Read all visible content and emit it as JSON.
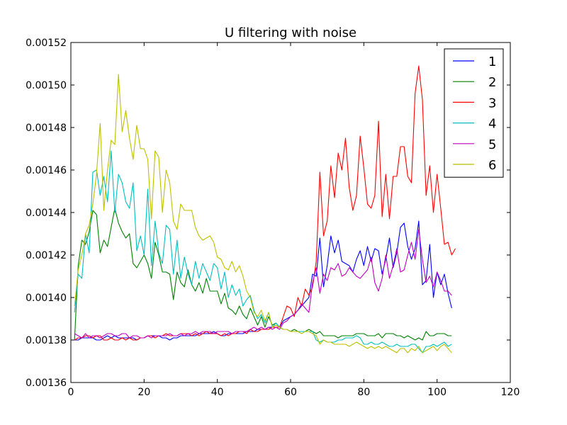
{
  "chart_data": {
    "type": "line",
    "title": "U filtering with noise",
    "xlabel": "",
    "ylabel": "",
    "xlim": [
      0,
      120
    ],
    "ylim": [
      0.00136,
      0.00152
    ],
    "xticks": [
      "0",
      "20",
      "40",
      "60",
      "80",
      "100",
      "120"
    ],
    "yticks": [
      "0.00136",
      "0.00138",
      "0.00140",
      "0.00142",
      "0.00144",
      "0.00146",
      "0.00148",
      "0.00150",
      "0.00152"
    ],
    "grid": false,
    "legend_position": "top-right",
    "x_start": 1,
    "x_step": 1,
    "series": [
      {
        "name": "1",
        "color": "#0000ff",
        "values": [
          0.00138,
          0.00138,
          0.001381,
          0.001381,
          0.001381,
          0.001381,
          0.00138,
          0.00138,
          0.001381,
          0.001382,
          0.001381,
          0.001382,
          0.001381,
          0.001381,
          0.001381,
          0.001381,
          0.001381,
          0.00138,
          0.001381,
          0.001381,
          0.001382,
          0.001382,
          0.001382,
          0.001382,
          0.001381,
          0.001381,
          0.00138,
          0.001381,
          0.001381,
          0.001382,
          0.001382,
          0.001382,
          0.001382,
          0.001382,
          0.001383,
          0.001383,
          0.001383,
          0.001383,
          0.001384,
          0.001383,
          0.001382,
          0.001382,
          0.001383,
          0.001383,
          0.001383,
          0.001383,
          0.001383,
          0.001384,
          0.001384,
          0.001384,
          0.001385,
          0.001385,
          0.001385,
          0.001386,
          0.001386,
          0.001386,
          0.001386,
          0.001389,
          0.00139,
          0.001391,
          0.001392,
          0.001394,
          0.001396,
          0.001398,
          0.0014,
          0.001411,
          0.00141,
          0.001428,
          0.001405,
          0.001415,
          0.001429,
          0.001421,
          0.001427,
          0.001417,
          0.001416,
          0.001415,
          0.001412,
          0.001418,
          0.001422,
          0.001415,
          0.001424,
          0.001417,
          0.001423,
          0.001422,
          0.001411,
          0.001418,
          0.001428,
          0.001414,
          0.001421,
          0.001433,
          0.001435,
          0.001424,
          0.001418,
          0.001423,
          0.001436,
          0.001406,
          0.001408,
          0.001425,
          0.0014,
          0.001412,
          0.001406,
          0.001411,
          0.001402,
          0.001395
        ]
      },
      {
        "name": "2",
        "color": "#008000",
        "values": [
          0.00138,
          0.001415,
          0.001427,
          0.001425,
          0.001431,
          0.001441,
          0.001439,
          0.001421,
          0.001427,
          0.001424,
          0.001433,
          0.001442,
          0.001435,
          0.001431,
          0.001428,
          0.00143,
          0.001416,
          0.001414,
          0.001417,
          0.00142,
          0.001416,
          0.001409,
          0.001426,
          0.00142,
          0.001412,
          0.001412,
          0.001411,
          0.001399,
          0.001412,
          0.001407,
          0.001405,
          0.001413,
          0.001406,
          0.001403,
          0.001407,
          0.001402,
          0.001409,
          0.001403,
          0.001403,
          0.001403,
          0.001397,
          0.001402,
          0.001395,
          0.001394,
          0.001392,
          0.001396,
          0.001392,
          0.00139,
          0.001395,
          0.001391,
          0.001387,
          0.001391,
          0.001386,
          0.001391,
          0.001387,
          0.001388,
          0.001386,
          0.001385,
          0.001385,
          0.001384,
          0.001385,
          0.001384,
          0.001384,
          0.001384,
          0.001385,
          0.001384,
          0.001383,
          0.001384,
          0.001382,
          0.001382,
          0.001382,
          0.001382,
          0.001381,
          0.001382,
          0.001382,
          0.001382,
          0.001382,
          0.001383,
          0.001383,
          0.001383,
          0.001382,
          0.001382,
          0.001382,
          0.001383,
          0.001381,
          0.001383,
          0.001383,
          0.001383,
          0.001382,
          0.001382,
          0.001381,
          0.001382,
          0.001381,
          0.00138,
          0.001381,
          0.00138,
          0.001384,
          0.001382,
          0.001382,
          0.001383,
          0.001383,
          0.001383,
          0.001382,
          0.001382
        ]
      },
      {
        "name": "3",
        "color": "#ff0000",
        "values": [
          0.00138,
          0.001381,
          0.001381,
          0.001382,
          0.001382,
          0.001381,
          0.001382,
          0.001382,
          0.00138,
          0.00138,
          0.001381,
          0.00138,
          0.00138,
          0.001381,
          0.00138,
          0.001381,
          0.00138,
          0.00138,
          0.001381,
          0.001381,
          0.001382,
          0.001382,
          0.001381,
          0.001382,
          0.001382,
          0.001383,
          0.001382,
          0.001382,
          0.001382,
          0.001383,
          0.001383,
          0.001383,
          0.001382,
          0.001383,
          0.001382,
          0.001383,
          0.001384,
          0.001383,
          0.001383,
          0.001383,
          0.001382,
          0.001383,
          0.001382,
          0.001383,
          0.001383,
          0.001384,
          0.001384,
          0.001383,
          0.001385,
          0.001384,
          0.001384,
          0.001385,
          0.001385,
          0.001385,
          0.001386,
          0.001386,
          0.001386,
          0.001391,
          0.001396,
          0.001395,
          0.001391,
          0.0014,
          0.001396,
          0.001404,
          0.001401,
          0.001405,
          0.001417,
          0.001459,
          0.001429,
          0.001436,
          0.001462,
          0.001447,
          0.001468,
          0.00146,
          0.001475,
          0.001452,
          0.001441,
          0.001448,
          0.001476,
          0.001461,
          0.001444,
          0.001442,
          0.001448,
          0.001483,
          0.001438,
          0.001458,
          0.001437,
          0.001457,
          0.001457,
          0.001471,
          0.001471,
          0.001457,
          0.001454,
          0.001496,
          0.001509,
          0.001493,
          0.001448,
          0.001462,
          0.00144,
          0.001458,
          0.001442,
          0.001425,
          0.001426,
          0.00142,
          0.001423
        ]
      },
      {
        "name": "4",
        "color": "#00bfbf",
        "values": [
          0.001393,
          0.001411,
          0.001409,
          0.00143,
          0.001421,
          0.001459,
          0.00146,
          0.001448,
          0.001457,
          0.001445,
          0.001469,
          0.00144,
          0.001458,
          0.001454,
          0.001445,
          0.001442,
          0.001454,
          0.001422,
          0.001429,
          0.00142,
          0.001451,
          0.001415,
          0.001436,
          0.001421,
          0.001416,
          0.001434,
          0.001432,
          0.001411,
          0.001427,
          0.001409,
          0.001419,
          0.001411,
          0.001406,
          0.001417,
          0.001409,
          0.001416,
          0.001412,
          0.001408,
          0.001416,
          0.001414,
          0.001404,
          0.001412,
          0.0014,
          0.001406,
          0.001401,
          0.001404,
          0.001396,
          0.001399,
          0.001401,
          0.001394,
          0.00139,
          0.001392,
          0.001388,
          0.001393,
          0.001386,
          0.001388,
          0.001386,
          0.001385,
          0.001385,
          0.001384,
          0.001384,
          0.001384,
          0.001384,
          0.001384,
          0.001384,
          0.001384,
          0.00138,
          0.001379,
          0.00138,
          0.001379,
          0.001379,
          0.001379,
          0.00138,
          0.00138,
          0.001381,
          0.001381,
          0.001381,
          0.001382,
          0.001381,
          0.001378,
          0.001378,
          0.001379,
          0.001378,
          0.001378,
          0.001379,
          0.001378,
          0.001377,
          0.001377,
          0.001378,
          0.001377,
          0.001377,
          0.001377,
          0.001378,
          0.001378,
          0.001376,
          0.001374,
          0.001377,
          0.001377,
          0.001378,
          0.001377,
          0.001378,
          0.001379,
          0.001377,
          0.001378
        ]
      },
      {
        "name": "5",
        "color": "#bf00bf",
        "values": [
          0.001383,
          0.001382,
          0.001381,
          0.001383,
          0.001381,
          0.001382,
          0.001382,
          0.001381,
          0.001382,
          0.001383,
          0.001383,
          0.001382,
          0.001382,
          0.001383,
          0.001383,
          0.001381,
          0.001382,
          0.001382,
          0.001381,
          0.001381,
          0.001382,
          0.001381,
          0.001382,
          0.001382,
          0.001382,
          0.001382,
          0.001383,
          0.001382,
          0.001382,
          0.001383,
          0.001382,
          0.001383,
          0.001383,
          0.001384,
          0.001383,
          0.001384,
          0.001384,
          0.001384,
          0.001383,
          0.001384,
          0.001384,
          0.001384,
          0.001384,
          0.001383,
          0.001384,
          0.001384,
          0.001384,
          0.001384,
          0.001385,
          0.001386,
          0.001385,
          0.001386,
          0.001385,
          0.001386,
          0.001385,
          0.001386,
          0.001385,
          0.001388,
          0.001389,
          0.001391,
          0.001392,
          0.001394,
          0.001397,
          0.001395,
          0.001393,
          0.001407,
          0.001414,
          0.001402,
          0.001411,
          0.001408,
          0.001414,
          0.001413,
          0.001416,
          0.00141,
          0.001411,
          0.001414,
          0.001412,
          0.00141,
          0.001409,
          0.001411,
          0.001413,
          0.001419,
          0.001407,
          0.001403,
          0.001409,
          0.00142,
          0.001409,
          0.001415,
          0.001423,
          0.001412,
          0.001413,
          0.00142,
          0.001426,
          0.001418,
          0.001432,
          0.001418,
          0.001407,
          0.00141,
          0.001405,
          0.001412,
          0.001408,
          0.001403,
          0.001403,
          0.001401
        ]
      },
      {
        "name": "6",
        "color": "#bfbf00",
        "values": [
          0.001396,
          0.001413,
          0.00142,
          0.00143,
          0.001434,
          0.001444,
          0.001458,
          0.001482,
          0.001441,
          0.00146,
          0.001474,
          0.001472,
          0.001505,
          0.001478,
          0.001488,
          0.001475,
          0.001465,
          0.001481,
          0.00147,
          0.00147,
          0.001465,
          0.001437,
          0.001469,
          0.001466,
          0.00144,
          0.00146,
          0.001454,
          0.001436,
          0.001432,
          0.001444,
          0.001441,
          0.001441,
          0.001441,
          0.001433,
          0.001429,
          0.001427,
          0.001428,
          0.001429,
          0.001426,
          0.001419,
          0.001418,
          0.001414,
          0.001413,
          0.001417,
          0.001412,
          0.001415,
          0.00141,
          0.001403,
          0.0014,
          0.001393,
          0.001391,
          0.001394,
          0.001389,
          0.001393,
          0.001386,
          0.001387,
          0.001386,
          0.001385,
          0.001385,
          0.001384,
          0.001384,
          0.001384,
          0.001383,
          0.001384,
          0.001384,
          0.001383,
          0.001382,
          0.001378,
          0.00138,
          0.001379,
          0.001379,
          0.001378,
          0.001378,
          0.001378,
          0.001378,
          0.001377,
          0.001378,
          0.001379,
          0.001378,
          0.001377,
          0.001376,
          0.001377,
          0.001376,
          0.001377,
          0.001376,
          0.001377,
          0.001376,
          0.001375,
          0.001374,
          0.001376,
          0.001376,
          0.001374,
          0.001376,
          0.001375,
          0.001377,
          0.001374,
          0.001375,
          0.001376,
          0.001377,
          0.001375,
          0.001377,
          0.001378,
          0.001376,
          0.001374
        ]
      }
    ]
  }
}
